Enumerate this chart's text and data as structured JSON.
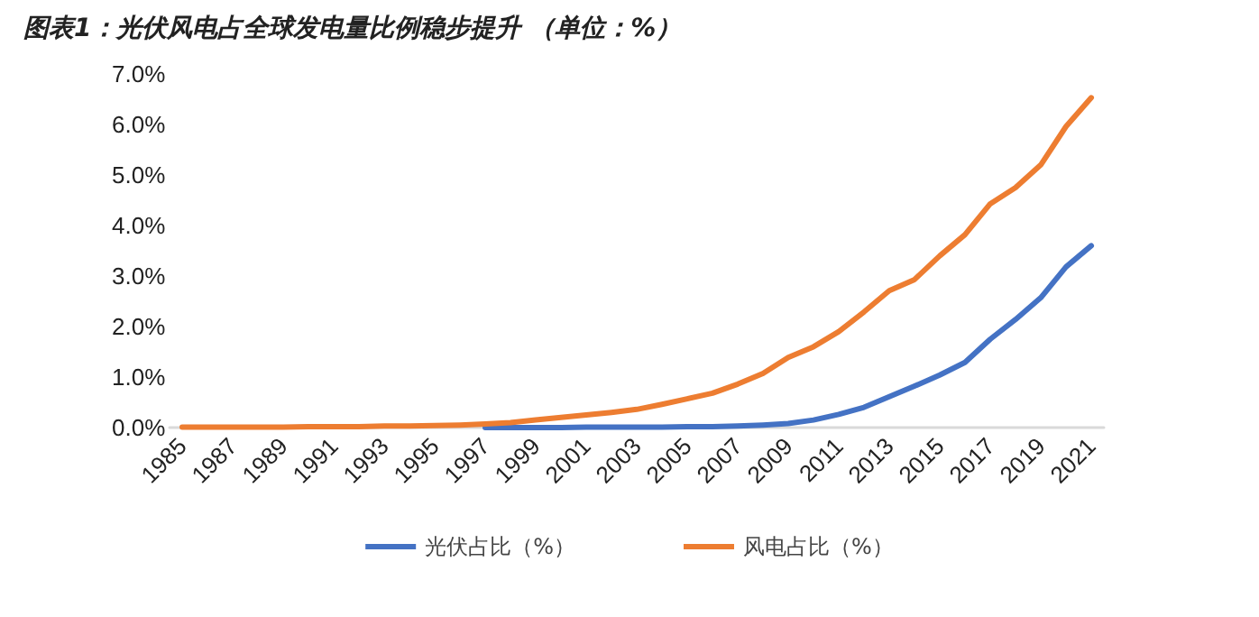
{
  "chart_data": {
    "type": "line",
    "title": "图表1：光伏风电占全球发电量比例稳步提升 （单位：%）",
    "categories": [
      "1985",
      null,
      "1987",
      null,
      "1989",
      null,
      "1991",
      null,
      "1993",
      null,
      "1995",
      null,
      "1997",
      null,
      "1999",
      null,
      "2001",
      null,
      "2003",
      null,
      "2005",
      null,
      "2007",
      null,
      "2009",
      null,
      "2011",
      null,
      "2013",
      null,
      "2015",
      null,
      "2017",
      null,
      "2019",
      null,
      "2021"
    ],
    "series": [
      {
        "name": "光伏占比（%）",
        "color": "#4472c4",
        "values": [
          null,
          null,
          null,
          null,
          null,
          null,
          null,
          null,
          null,
          null,
          null,
          null,
          0,
          0,
          0,
          0,
          0.01,
          0.01,
          0.01,
          0.01,
          0.02,
          0.02,
          0.03,
          0.05,
          0.08,
          0.15,
          0.26,
          0.4,
          0.61,
          0.82,
          1.04,
          1.29,
          1.75,
          2.14,
          2.57,
          3.18,
          3.6
        ]
      },
      {
        "name": "风电占比（%）",
        "color": "#ed7d31",
        "values": [
          0.01,
          0.01,
          0.01,
          0.01,
          0.01,
          0.02,
          0.02,
          0.02,
          0.03,
          0.03,
          0.04,
          0.05,
          0.07,
          0.1,
          0.15,
          0.2,
          0.25,
          0.3,
          0.36,
          0.46,
          0.57,
          0.68,
          0.86,
          1.07,
          1.39,
          1.6,
          1.9,
          2.29,
          2.71,
          2.93,
          3.4,
          3.82,
          4.43,
          4.75,
          5.2,
          5.96,
          6.53
        ]
      }
    ],
    "ylim": [
      0,
      7
    ],
    "yticks": [
      {
        "value": 0,
        "label": "0.0%"
      },
      {
        "value": 1,
        "label": "1.0%"
      },
      {
        "value": 2,
        "label": "2.0%"
      },
      {
        "value": 3,
        "label": "3.0%"
      },
      {
        "value": 4,
        "label": "4.0%"
      },
      {
        "value": 5,
        "label": "5.0%"
      },
      {
        "value": 6,
        "label": "6.0%"
      },
      {
        "value": 7,
        "label": "7.0%"
      }
    ],
    "grid": false,
    "legend": "bottom",
    "marker": "none",
    "line_style": "solid"
  }
}
